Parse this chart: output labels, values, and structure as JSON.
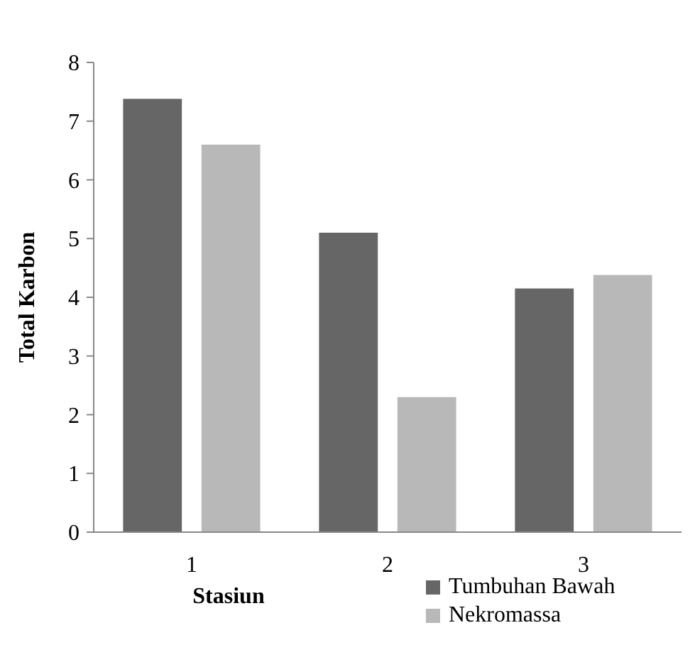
{
  "chart_data": {
    "type": "bar",
    "xlabel": "Stasiun",
    "ylabel": "Total Karbon",
    "categories": [
      "1",
      "2",
      "3"
    ],
    "series": [
      {
        "name": "Tumbuhan Bawah",
        "color": "#666666",
        "values": [
          7.38,
          5.1,
          4.15
        ]
      },
      {
        "name": "Nekromassa",
        "color": "#b8b8b8",
        "values": [
          6.6,
          2.3,
          4.38
        ]
      }
    ],
    "ylim": [
      0,
      8
    ],
    "yticks": [
      0,
      1,
      2,
      3,
      4,
      5,
      6,
      7,
      8
    ],
    "legend": "bottom right",
    "grid": false
  }
}
